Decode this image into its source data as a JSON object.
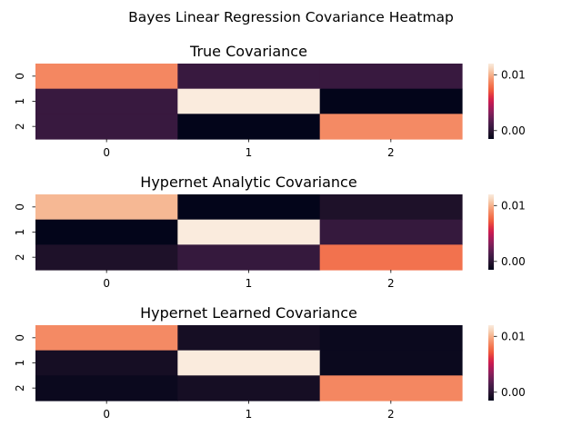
{
  "figure": {
    "suptitle": "Bayes Linear Regression Covariance Heatmap"
  },
  "colormap": {
    "name": "rocket",
    "vmin": -0.0015,
    "vmax": 0.012,
    "stops": [
      "#03051a",
      "#1d1128",
      "#36193e",
      "#4c1d4b",
      "#6b1f56",
      "#8a1f5b",
      "#ab1b59",
      "#cb1b4f",
      "#e13342",
      "#ef5a3c",
      "#f37651",
      "#f5936d",
      "#f6b48e",
      "#f7d3b9",
      "#faebdd"
    ]
  },
  "chart_data": [
    {
      "type": "heatmap",
      "title": "True Covariance",
      "x_tick_labels": [
        "0",
        "1",
        "2"
      ],
      "y_tick_labels": [
        "0",
        "1",
        "2"
      ],
      "colorbar_ticks": [
        0.0,
        0.01
      ],
      "colorbar_tick_labels": [
        "0.00",
        "0.01"
      ],
      "values": [
        [
          0.0087,
          0.0005,
          0.0005
        ],
        [
          0.0005,
          0.012,
          -0.0015
        ],
        [
          0.0005,
          -0.0015,
          0.0088
        ]
      ]
    },
    {
      "type": "heatmap",
      "title": "Hypernet Analytic Covariance",
      "x_tick_labels": [
        "0",
        "1",
        "2"
      ],
      "y_tick_labels": [
        "0",
        "1",
        "2"
      ],
      "colorbar_ticks": [
        0.0,
        0.01
      ],
      "colorbar_tick_labels": [
        "0.00",
        "0.01"
      ],
      "values": [
        [
          0.0102,
          -0.0015,
          -0.0005
        ],
        [
          -0.0015,
          0.0122,
          0.0004
        ],
        [
          -0.0005,
          0.0004,
          0.008
        ]
      ]
    },
    {
      "type": "heatmap",
      "title": "Hypernet Learned Covariance",
      "x_tick_labels": [
        "0",
        "1",
        "2"
      ],
      "y_tick_labels": [
        "0",
        "1",
        "2"
      ],
      "colorbar_ticks": [
        0.0,
        0.01
      ],
      "colorbar_tick_labels": [
        "0.00",
        "0.01"
      ],
      "values": [
        [
          0.0088,
          -0.0008,
          -0.0012
        ],
        [
          -0.0008,
          0.012,
          -0.0012
        ],
        [
          -0.0012,
          -0.0008,
          0.0087
        ]
      ]
    }
  ]
}
